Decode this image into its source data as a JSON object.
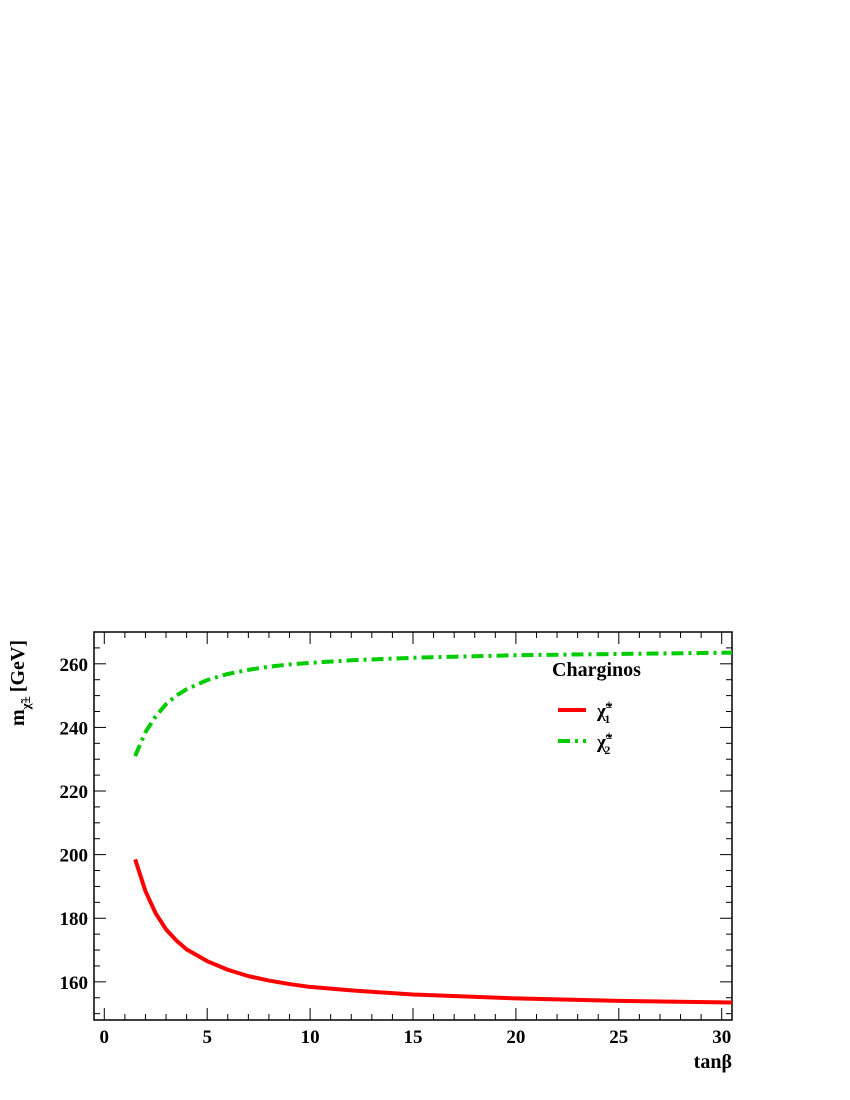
{
  "chart_data": {
    "type": "line",
    "title": "",
    "xlabel": "tanβ",
    "ylabel": "m",
    "ylabel_sub": "χ̃±",
    "ylabel_unit": "[GeV]",
    "xlim": [
      -0.5,
      30.5
    ],
    "ylim": [
      148,
      270
    ],
    "xticks": [
      0,
      5,
      10,
      15,
      20,
      25,
      30
    ],
    "yticks": [
      160,
      180,
      200,
      220,
      240,
      260
    ],
    "legend": {
      "title": "Charginos",
      "position": "top-right"
    },
    "series": [
      {
        "name": "χ̃",
        "name_sup": "±",
        "name_sub": "1",
        "color": "#ff0000",
        "style": "solid",
        "x": [
          1.5,
          2,
          2.5,
          3,
          3.5,
          4,
          5,
          6,
          7,
          8,
          9,
          10,
          12,
          15,
          20,
          25,
          30.5
        ],
        "y": [
          198.5,
          188.5,
          181.5,
          176.5,
          173,
          170.2,
          166.5,
          163.8,
          161.8,
          160.4,
          159.3,
          158.4,
          157.3,
          156,
          154.8,
          154,
          153.5
        ]
      },
      {
        "name": "χ̃",
        "name_sup": "±",
        "name_sub": "2",
        "color": "#00cc00",
        "style": "dash-dot",
        "x": [
          1.5,
          2,
          2.5,
          3,
          3.5,
          4,
          5,
          6,
          7,
          8,
          9,
          10,
          12,
          15,
          20,
          25,
          30.5
        ],
        "y": [
          231,
          238.5,
          243.5,
          247.3,
          250,
          252,
          254.9,
          256.8,
          258.1,
          259.1,
          259.8,
          260.3,
          261.1,
          261.9,
          262.7,
          263.1,
          263.5
        ]
      }
    ]
  }
}
